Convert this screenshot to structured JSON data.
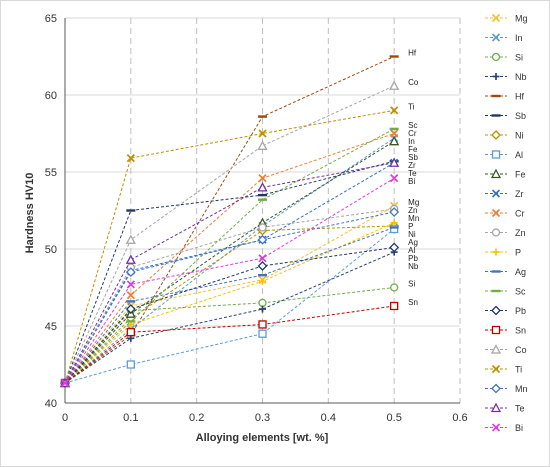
{
  "chart_data": {
    "type": "line",
    "xlabel": "Alloying elements [wt. %]",
    "ylabel": "Hardness HV10",
    "xlim": [
      0,
      0.6
    ],
    "ylim": [
      40,
      65
    ],
    "xticks": [
      "0",
      "0.1",
      "0.2",
      "0.3",
      "0.4",
      "0.5",
      "0.6"
    ],
    "yticks": [
      "40",
      "45",
      "50",
      "55",
      "60",
      "65"
    ],
    "x": [
      0,
      0.1,
      0.3,
      0.5
    ],
    "grid": "both",
    "legend_position": "right",
    "series": [
      {
        "name": "Mg",
        "color": "#f2c12e",
        "marker": "x",
        "values": [
          41.3,
          46.3,
          48.0,
          52.8
        ],
        "end_label": "Mg"
      },
      {
        "name": "In",
        "color": "#5b9bd5",
        "marker": "x",
        "values": [
          41.3,
          44.8,
          51.5,
          57.2
        ],
        "end_label": "In"
      },
      {
        "name": "Si",
        "color": "#70ad47",
        "marker": "circle",
        "values": [
          41.3,
          46.0,
          46.5,
          47.5
        ],
        "end_label": "Si"
      },
      {
        "name": "Nb",
        "color": "#264478",
        "marker": "plus",
        "values": [
          41.3,
          44.2,
          46.1,
          49.8
        ],
        "end_label": "Nb"
      },
      {
        "name": "Hf",
        "color": "#9e480e",
        "marker": "dash",
        "values": [
          41.3,
          44.4,
          58.6,
          62.5
        ],
        "end_label": "Hf"
      },
      {
        "name": "Sb",
        "color": "#203864",
        "marker": "dash",
        "values": [
          41.3,
          52.5,
          53.5,
          55.7
        ],
        "end_label": "Sb"
      },
      {
        "name": "Ni",
        "color": "#bf8f00",
        "marker": "diamond",
        "values": [
          41.3,
          45.5,
          51.2,
          51.5
        ],
        "end_label": "Ni"
      },
      {
        "name": "Al",
        "color": "#5b9bd5",
        "marker": "square",
        "values": [
          41.3,
          42.5,
          44.5,
          51.3
        ],
        "end_label": "Al"
      },
      {
        "name": "Fe",
        "color": "#375623",
        "marker": "triangle",
        "values": [
          41.3,
          45.8,
          51.7,
          57.0
        ],
        "end_label": "Fe"
      },
      {
        "name": "Zr",
        "color": "#2e75b6",
        "marker": "x",
        "values": [
          41.3,
          48.6,
          50.6,
          55.6
        ],
        "end_label": "Zr"
      },
      {
        "name": "Cr",
        "color": "#ed7d31",
        "marker": "x",
        "values": [
          41.3,
          47.0,
          54.6,
          57.5
        ],
        "end_label": "Cr"
      },
      {
        "name": "Zn",
        "color": "#a5a5a5",
        "marker": "circle",
        "values": [
          41.3,
          48.8,
          51.4,
          52.6
        ],
        "end_label": "Zn"
      },
      {
        "name": "P",
        "color": "#ffc000",
        "marker": "plus",
        "values": [
          41.3,
          45.1,
          47.9,
          51.7
        ],
        "end_label": "P"
      },
      {
        "name": "Ag",
        "color": "#4472c4",
        "marker": "dash",
        "values": [
          41.3,
          46.6,
          48.3,
          51.4
        ],
        "end_label": "Ag"
      },
      {
        "name": "Sc",
        "color": "#70ad47",
        "marker": "dash",
        "values": [
          41.3,
          45.3,
          53.2,
          57.8
        ],
        "end_label": "Sc"
      },
      {
        "name": "Pb",
        "color": "#203864",
        "marker": "diamond",
        "values": [
          41.3,
          46.1,
          48.9,
          50.1
        ],
        "end_label": "Pb"
      },
      {
        "name": "Sn",
        "color": "#c00000",
        "marker": "square",
        "values": [
          41.3,
          44.6,
          45.1,
          46.3
        ],
        "end_label": "Sn"
      },
      {
        "name": "Co",
        "color": "#a5a5a5",
        "marker": "triangle",
        "values": [
          41.3,
          50.6,
          56.7,
          60.6
        ],
        "end_label": "Co"
      },
      {
        "name": "Ti",
        "color": "#bf8f00",
        "marker": "x",
        "values": [
          41.3,
          55.9,
          57.5,
          59.0
        ],
        "end_label": "Ti"
      },
      {
        "name": "Mn",
        "color": "#4472c4",
        "marker": "diamond",
        "values": [
          41.3,
          48.5,
          50.6,
          52.4
        ],
        "end_label": "Mn"
      },
      {
        "name": "Te",
        "color": "#7030a0",
        "marker": "triangle",
        "values": [
          41.3,
          49.3,
          54.0,
          55.6
        ],
        "end_label": "Te"
      },
      {
        "name": "Bi",
        "color": "#e03cdc",
        "marker": "x",
        "values": [
          41.3,
          47.7,
          49.4,
          54.6
        ],
        "end_label": "Bi"
      }
    ]
  }
}
